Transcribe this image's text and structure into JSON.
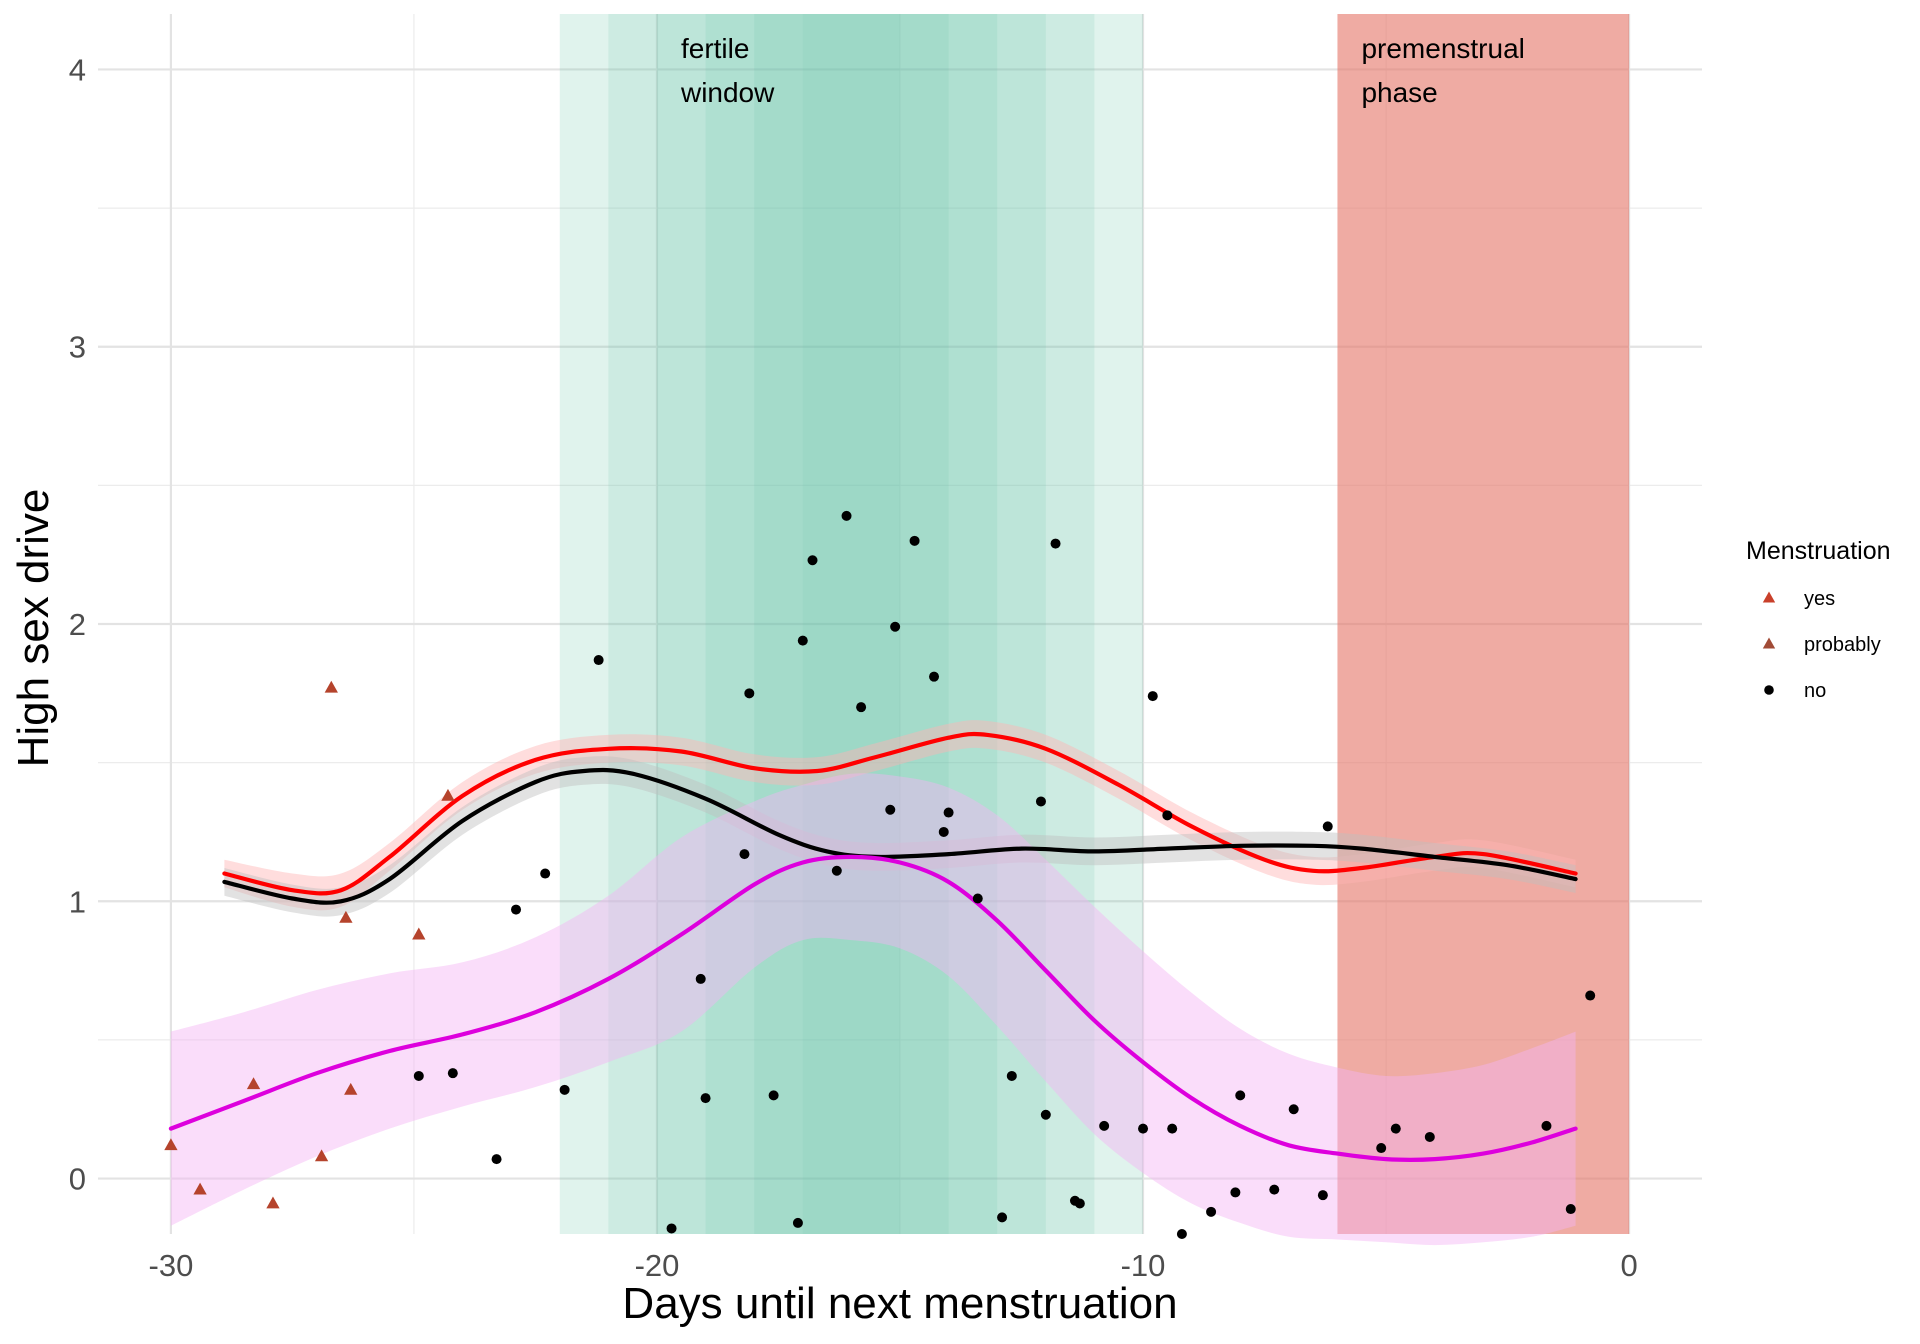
{
  "chart_data": {
    "type": "scatter",
    "xlabel": "Days until next menstruation",
    "ylabel": "High sex drive",
    "xlim": [
      -31.5,
      1.5
    ],
    "ylim": [
      -0.2,
      4.2
    ],
    "xticks": [
      -30,
      -20,
      -10,
      0
    ],
    "yticks": [
      0,
      1,
      2,
      3,
      4
    ],
    "grid": true,
    "bands": [
      {
        "label_lines": [
          "fertile",
          "window"
        ],
        "color": "#66c2a5",
        "layers": [
          [
            -22,
            -10,
            0.2
          ],
          [
            -21,
            -11,
            0.15
          ],
          [
            -20,
            -12,
            0.15
          ],
          [
            -19,
            -13,
            0.15
          ],
          [
            -18,
            -14,
            0.15
          ],
          [
            -17,
            -15,
            0.1
          ]
        ]
      },
      {
        "label_lines": [
          "premenstrual",
          "phase"
        ],
        "color": "#e5776a",
        "range": [
          -6,
          0
        ],
        "opacity": 0.62
      }
    ],
    "legend": {
      "title": "Menstruation",
      "position": "right",
      "entries": [
        {
          "label": "yes",
          "shape": "triangle",
          "color": "#c9402a"
        },
        {
          "label": "probably",
          "shape": "triangle",
          "color": "#a14b36"
        },
        {
          "label": "no",
          "shape": "circle",
          "color": "#000000"
        }
      ]
    },
    "series": [
      {
        "shape": "triangle",
        "color": "#b5432c",
        "points": [
          [
            -30,
            0.12
          ],
          [
            -29.4,
            -0.04
          ],
          [
            -28.3,
            0.34
          ],
          [
            -27.9,
            -0.09
          ],
          [
            -26.9,
            0.08
          ],
          [
            -26.7,
            1.77
          ],
          [
            -26.4,
            0.94
          ],
          [
            -26.3,
            0.32
          ],
          [
            -24.9,
            0.88
          ],
          [
            -24.3,
            1.38
          ]
        ]
      },
      {
        "shape": "circle",
        "color": "#000000",
        "points": [
          [
            -24.9,
            0.37
          ],
          [
            -24.2,
            0.38
          ],
          [
            -23.3,
            0.07
          ],
          [
            -22.9,
            0.97
          ],
          [
            -22.3,
            1.1
          ],
          [
            -21.9,
            0.32
          ],
          [
            -21.2,
            1.87
          ],
          [
            -19.7,
            -0.18
          ],
          [
            -19.1,
            0.72
          ],
          [
            -19.0,
            0.29
          ],
          [
            -18.2,
            1.17
          ],
          [
            -18.1,
            1.75
          ],
          [
            -17.6,
            0.3
          ],
          [
            -17.1,
            -0.16
          ],
          [
            -17.0,
            1.94
          ],
          [
            -16.8,
            2.23
          ],
          [
            -16.3,
            1.11
          ],
          [
            -16.1,
            2.39
          ],
          [
            -15.8,
            1.7
          ],
          [
            -15.2,
            1.33
          ],
          [
            -15.1,
            1.99
          ],
          [
            -14.7,
            2.3
          ],
          [
            -14.3,
            1.81
          ],
          [
            -14.1,
            1.25
          ],
          [
            -14.0,
            1.32
          ],
          [
            -13.4,
            1.01
          ],
          [
            -12.9,
            -0.14
          ],
          [
            -12.7,
            0.37
          ],
          [
            -12.1,
            1.36
          ],
          [
            -12.0,
            0.23
          ],
          [
            -11.8,
            2.29
          ],
          [
            -11.4,
            -0.08
          ],
          [
            -11.3,
            -0.09
          ],
          [
            -10.8,
            0.19
          ],
          [
            -10.0,
            0.18
          ],
          [
            -9.8,
            1.74
          ],
          [
            -9.5,
            1.31
          ],
          [
            -9.4,
            0.18
          ],
          [
            -9.2,
            -0.2
          ],
          [
            -8.6,
            -0.12
          ],
          [
            -8.1,
            -0.05
          ],
          [
            -8.0,
            0.3
          ],
          [
            -7.3,
            -0.04
          ],
          [
            -6.9,
            0.25
          ],
          [
            -6.3,
            -0.06
          ],
          [
            -6.2,
            1.27
          ],
          [
            -5.1,
            0.11
          ],
          [
            -4.8,
            0.18
          ],
          [
            -4.1,
            0.15
          ],
          [
            -1.7,
            0.19
          ],
          [
            -1.2,
            -0.11
          ],
          [
            -0.8,
            0.66
          ]
        ]
      },
      {
        "type": "line",
        "color": "#ff0000",
        "band_color": "#ffb3b3",
        "values": [
          [
            -28.9,
            1.1
          ],
          [
            -27.5,
            1.04
          ],
          [
            -26.5,
            1.04
          ],
          [
            -25.5,
            1.16
          ],
          [
            -24.0,
            1.38
          ],
          [
            -22.5,
            1.51
          ],
          [
            -21.0,
            1.55
          ],
          [
            -19.5,
            1.54
          ],
          [
            -18.0,
            1.48
          ],
          [
            -16.7,
            1.47
          ],
          [
            -15.5,
            1.52
          ],
          [
            -14.0,
            1.59
          ],
          [
            -13.2,
            1.6
          ],
          [
            -12.0,
            1.55
          ],
          [
            -10.5,
            1.42
          ],
          [
            -9.0,
            1.27
          ],
          [
            -7.5,
            1.15
          ],
          [
            -6.5,
            1.11
          ],
          [
            -5.5,
            1.12
          ],
          [
            -4.0,
            1.16
          ],
          [
            -3.0,
            1.17
          ],
          [
            -1.1,
            1.1
          ]
        ],
        "ci": [
          0.05,
          0.06,
          0.06,
          0.05,
          0.05,
          0.05,
          0.05,
          0.05,
          0.05,
          0.05,
          0.05,
          0.05,
          0.05,
          0.05,
          0.05,
          0.05,
          0.05,
          0.05,
          0.05,
          0.05,
          0.05,
          0.05
        ]
      },
      {
        "type": "line",
        "color": "#000000",
        "band_color": "#bfbfbf",
        "values": [
          [
            -28.9,
            1.07
          ],
          [
            -27.5,
            1.01
          ],
          [
            -26.5,
            1.0
          ],
          [
            -25.5,
            1.08
          ],
          [
            -24.0,
            1.29
          ],
          [
            -22.5,
            1.43
          ],
          [
            -21.5,
            1.47
          ],
          [
            -20.5,
            1.46
          ],
          [
            -19.0,
            1.37
          ],
          [
            -17.5,
            1.24
          ],
          [
            -16.5,
            1.18
          ],
          [
            -15.5,
            1.16
          ],
          [
            -14.0,
            1.17
          ],
          [
            -12.5,
            1.19
          ],
          [
            -11.0,
            1.18
          ],
          [
            -9.5,
            1.19
          ],
          [
            -8.0,
            1.2
          ],
          [
            -6.5,
            1.2
          ],
          [
            -5.5,
            1.19
          ],
          [
            -4.0,
            1.16
          ],
          [
            -2.5,
            1.13
          ],
          [
            -1.1,
            1.08
          ]
        ],
        "ci": [
          0.05,
          0.05,
          0.05,
          0.05,
          0.05,
          0.05,
          0.05,
          0.05,
          0.05,
          0.05,
          0.05,
          0.05,
          0.05,
          0.05,
          0.05,
          0.05,
          0.05,
          0.05,
          0.05,
          0.05,
          0.05,
          0.05
        ]
      },
      {
        "type": "line",
        "color": "#dd00dd",
        "band_color": "#f5b3f5",
        "values": [
          [
            -30.0,
            0.18
          ],
          [
            -28.5,
            0.28
          ],
          [
            -27.0,
            0.38
          ],
          [
            -25.5,
            0.46
          ],
          [
            -24.0,
            0.52
          ],
          [
            -22.5,
            0.6
          ],
          [
            -21.0,
            0.72
          ],
          [
            -19.5,
            0.88
          ],
          [
            -18.0,
            1.06
          ],
          [
            -17.0,
            1.14
          ],
          [
            -16.0,
            1.16
          ],
          [
            -15.0,
            1.14
          ],
          [
            -14.0,
            1.07
          ],
          [
            -13.0,
            0.93
          ],
          [
            -12.0,
            0.75
          ],
          [
            -11.0,
            0.57
          ],
          [
            -10.0,
            0.42
          ],
          [
            -9.0,
            0.29
          ],
          [
            -8.0,
            0.19
          ],
          [
            -7.0,
            0.12
          ],
          [
            -6.0,
            0.09
          ],
          [
            -5.0,
            0.07
          ],
          [
            -4.0,
            0.07
          ],
          [
            -3.0,
            0.09
          ],
          [
            -2.0,
            0.13
          ],
          [
            -1.1,
            0.18
          ]
        ],
        "ci": [
          0.35,
          0.32,
          0.3,
          0.28,
          0.26,
          0.27,
          0.3,
          0.35,
          0.3,
          0.28,
          0.3,
          0.31,
          0.34,
          0.38,
          0.4,
          0.41,
          0.4,
          0.38,
          0.35,
          0.33,
          0.31,
          0.3,
          0.31,
          0.32,
          0.34,
          0.35
        ]
      }
    ]
  }
}
